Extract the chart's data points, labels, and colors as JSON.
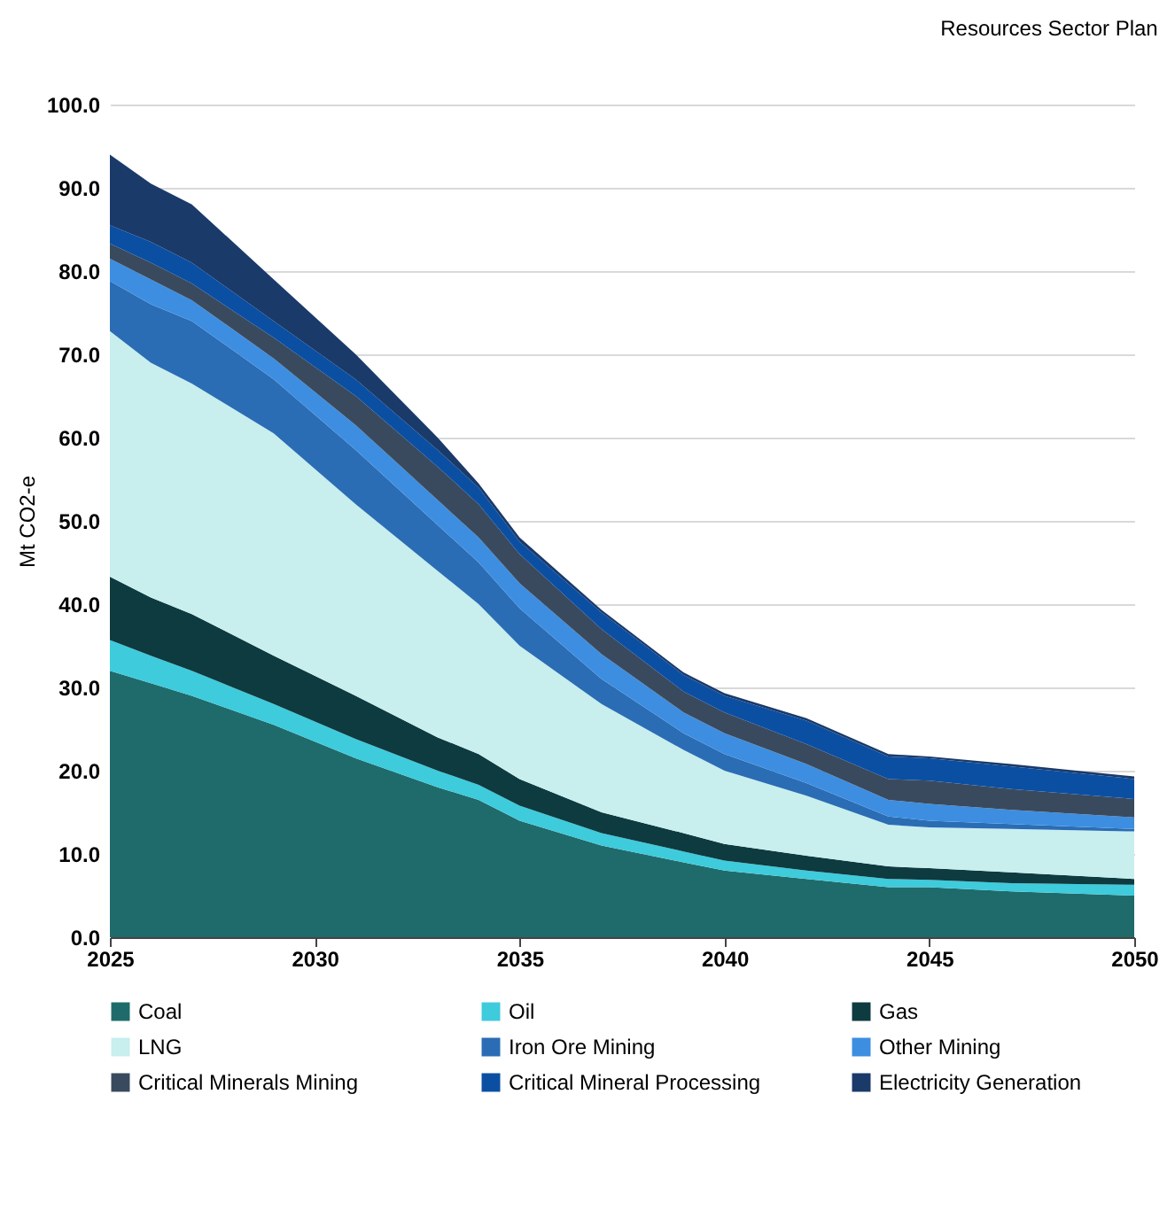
{
  "chart_data": {
    "type": "area",
    "title": "Resources Sector Plan",
    "ylabel": "Mt CO2-e",
    "stacked": true,
    "x": [
      2025,
      2026,
      2027,
      2029,
      2031,
      2033,
      2034,
      2035,
      2037,
      2039,
      2040,
      2042,
      2044,
      2045,
      2047,
      2050
    ],
    "xlim": [
      2025,
      2050
    ],
    "xticks": [
      2025,
      2030,
      2035,
      2040,
      2045,
      2050
    ],
    "ylim": [
      0,
      100
    ],
    "yticks": [
      {
        "value": 0,
        "label": "0.0"
      },
      {
        "value": 10,
        "label": "10.0"
      },
      {
        "value": 20,
        "label": "20.0"
      },
      {
        "value": 30,
        "label": "30.0"
      },
      {
        "value": 40,
        "label": "40.0"
      },
      {
        "value": 50,
        "label": "50.0"
      },
      {
        "value": 60,
        "label": "60.0"
      },
      {
        "value": 70,
        "label": "70.0"
      },
      {
        "value": 80,
        "label": "80.0"
      },
      {
        "value": 90,
        "label": "90.0"
      },
      {
        "value": 100,
        "label": "100.0"
      }
    ],
    "grid": "y",
    "legend": "bottom",
    "series": [
      {
        "name": "Coal",
        "color": "#1f6b6b",
        "values": [
          32,
          30.5,
          29,
          25.5,
          21.5,
          18,
          16.5,
          14,
          11,
          9,
          8,
          7,
          6,
          6,
          5.5,
          5
        ]
      },
      {
        "name": "Oil",
        "color": "#3ecbdc",
        "values": [
          3.7,
          3.3,
          3,
          2.5,
          2.3,
          2,
          1.8,
          1.8,
          1.5,
          1.3,
          1.2,
          1,
          1,
          0.9,
          1,
          1.3
        ]
      },
      {
        "name": "Gas",
        "color": "#0d3b40",
        "values": [
          7.6,
          7,
          6.8,
          5.8,
          5.2,
          4,
          3.7,
          3.2,
          2.5,
          2.2,
          2,
          1.8,
          1.5,
          1.4,
          1.3,
          0.7
        ]
      },
      {
        "name": "LNG",
        "color": "#c8eeee",
        "values": [
          29.5,
          28.2,
          27.7,
          26.7,
          23,
          20,
          18,
          16,
          13,
          10,
          8.8,
          7.2,
          5,
          4.9,
          5.2,
          5.7
        ]
      },
      {
        "name": "Iron Ore Mining",
        "color": "#2a6db5",
        "values": [
          6,
          7,
          7.5,
          6.5,
          6.5,
          5.5,
          5,
          4.5,
          3,
          2,
          2,
          1.5,
          1,
          0.8,
          0.6,
          0.3
        ]
      },
      {
        "name": "Other Mining",
        "color": "#3d8ee0",
        "values": [
          2.7,
          3,
          2.5,
          2.5,
          3,
          3,
          3,
          3,
          3,
          2.5,
          2.5,
          2.3,
          2,
          2,
          1.7,
          1.4
        ]
      },
      {
        "name": "Critical Minerals Mining",
        "color": "#3a4a5e",
        "values": [
          1.8,
          2,
          2,
          2.5,
          3.5,
          4,
          4,
          3.5,
          3,
          2.5,
          2.5,
          2.4,
          2.5,
          2.8,
          2.5,
          2.2
        ]
      },
      {
        "name": "Critical Mineral Processing",
        "color": "#0b4fa3",
        "values": [
          2.2,
          2.5,
          2.5,
          2,
          2,
          2,
          2,
          1.5,
          2,
          2,
          2,
          2.8,
          2.7,
          2.7,
          2.7,
          2.4
        ]
      },
      {
        "name": "Electricity Generation",
        "color": "#1a3a6a",
        "values": [
          8.5,
          7,
          7,
          5,
          3,
          1.5,
          0.5,
          0.5,
          0.3,
          0.3,
          0.3,
          0.3,
          0.3,
          0.2,
          0.3,
          0.3
        ]
      }
    ]
  }
}
